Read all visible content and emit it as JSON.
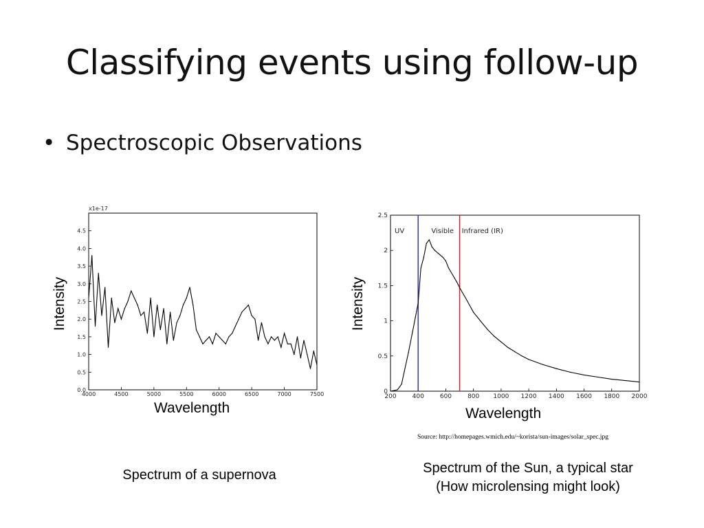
{
  "slide": {
    "title": "Classifying events using follow-up",
    "bullet": "Spectroscopic Observations"
  },
  "left_panel": {
    "ylabel": "Intensity",
    "xlabel": "Wavelength",
    "caption": "Spectrum of a supernova"
  },
  "right_panel": {
    "ylabel": "Intensity",
    "xlabel": "Wavelength",
    "caption_line1": "Spectrum of the Sun, a typical star",
    "caption_line2": "(How microlensing might look)",
    "source": "Source: http://homepages.wmich.edu/~korista/sun-images/solar_spec.jpg"
  },
  "chart_data": [
    {
      "type": "line",
      "multiplier": "x1e-17",
      "xlim": [
        4000,
        7500
      ],
      "ylim": [
        0,
        5
      ],
      "xticks": [
        4000,
        4500,
        5000,
        5500,
        6000,
        6500,
        7000,
        7500
      ],
      "yticks": [
        0.0,
        0.5,
        1.0,
        1.5,
        2.0,
        2.5,
        3.0,
        3.5,
        4.0,
        4.5
      ],
      "ytick_labels": [
        "0.0",
        "0.5",
        "1.0",
        "1.5",
        "2.0",
        "2.5",
        "3.0",
        "3.5",
        "4.0",
        "4.5"
      ],
      "grid": false,
      "x": [
        4000,
        4050,
        4100,
        4150,
        4200,
        4250,
        4300,
        4350,
        4400,
        4450,
        4500,
        4550,
        4600,
        4650,
        4700,
        4750,
        4800,
        4850,
        4900,
        4950,
        5000,
        5050,
        5100,
        5150,
        5200,
        5250,
        5300,
        5350,
        5400,
        5450,
        5500,
        5550,
        5600,
        5650,
        5700,
        5750,
        5800,
        5850,
        5900,
        5950,
        6000,
        6050,
        6100,
        6150,
        6200,
        6250,
        6300,
        6350,
        6400,
        6450,
        6500,
        6550,
        6600,
        6650,
        6700,
        6750,
        6800,
        6850,
        6900,
        6950,
        7000,
        7050,
        7100,
        7150,
        7200,
        7250,
        7300,
        7350,
        7400,
        7450,
        7500
      ],
      "y": [
        2.6,
        3.8,
        1.8,
        3.3,
        2.1,
        2.9,
        1.2,
        2.6,
        1.9,
        2.3,
        2.0,
        2.3,
        2.5,
        2.8,
        2.6,
        2.4,
        2.1,
        2.2,
        1.6,
        2.6,
        1.5,
        2.4,
        1.7,
        2.3,
        1.3,
        2.2,
        1.4,
        1.9,
        2.1,
        2.4,
        2.6,
        2.9,
        2.4,
        1.7,
        1.5,
        1.3,
        1.4,
        1.5,
        1.3,
        1.6,
        1.5,
        1.4,
        1.3,
        1.5,
        1.6,
        1.8,
        2.0,
        2.2,
        2.3,
        2.4,
        2.1,
        2.0,
        1.4,
        1.9,
        1.5,
        1.3,
        1.5,
        1.4,
        1.5,
        1.2,
        1.6,
        1.3,
        1.3,
        1.0,
        1.5,
        0.9,
        1.4,
        1.0,
        0.6,
        1.1,
        0.7
      ]
    },
    {
      "type": "line",
      "xlim": [
        200,
        2000
      ],
      "ylim": [
        0,
        2.5
      ],
      "xticks": [
        200,
        400,
        600,
        800,
        1000,
        1200,
        1400,
        1600,
        1800,
        2000
      ],
      "yticks": [
        0,
        0.5,
        1,
        1.5,
        2,
        2.5
      ],
      "ytick_labels": [
        "0",
        "0.5",
        "1",
        "1.5",
        "2",
        "2.5"
      ],
      "grid": false,
      "regions": [
        {
          "label": "UV",
          "x": 230
        },
        {
          "label": "Visible",
          "x": 495
        },
        {
          "label": "Infrared (IR)",
          "x": 715
        }
      ],
      "markers": [
        {
          "x": 400,
          "color": "#3333cc"
        },
        {
          "x": 700,
          "color": "#cc2222"
        }
      ],
      "x": [
        200,
        250,
        280,
        300,
        330,
        360,
        380,
        400,
        420,
        440,
        460,
        480,
        500,
        520,
        550,
        580,
        600,
        620,
        650,
        680,
        700,
        750,
        800,
        850,
        900,
        950,
        1000,
        1050,
        1100,
        1150,
        1200,
        1300,
        1400,
        1500,
        1600,
        1700,
        1800,
        1900,
        2000
      ],
      "y": [
        0.0,
        0.02,
        0.1,
        0.28,
        0.55,
        0.85,
        1.05,
        1.25,
        1.75,
        1.9,
        2.1,
        2.15,
        2.05,
        2.0,
        1.95,
        1.9,
        1.85,
        1.75,
        1.65,
        1.55,
        1.47,
        1.3,
        1.12,
        1.0,
        0.88,
        0.78,
        0.7,
        0.62,
        0.56,
        0.5,
        0.45,
        0.38,
        0.32,
        0.27,
        0.23,
        0.2,
        0.17,
        0.15,
        0.13
      ]
    }
  ]
}
